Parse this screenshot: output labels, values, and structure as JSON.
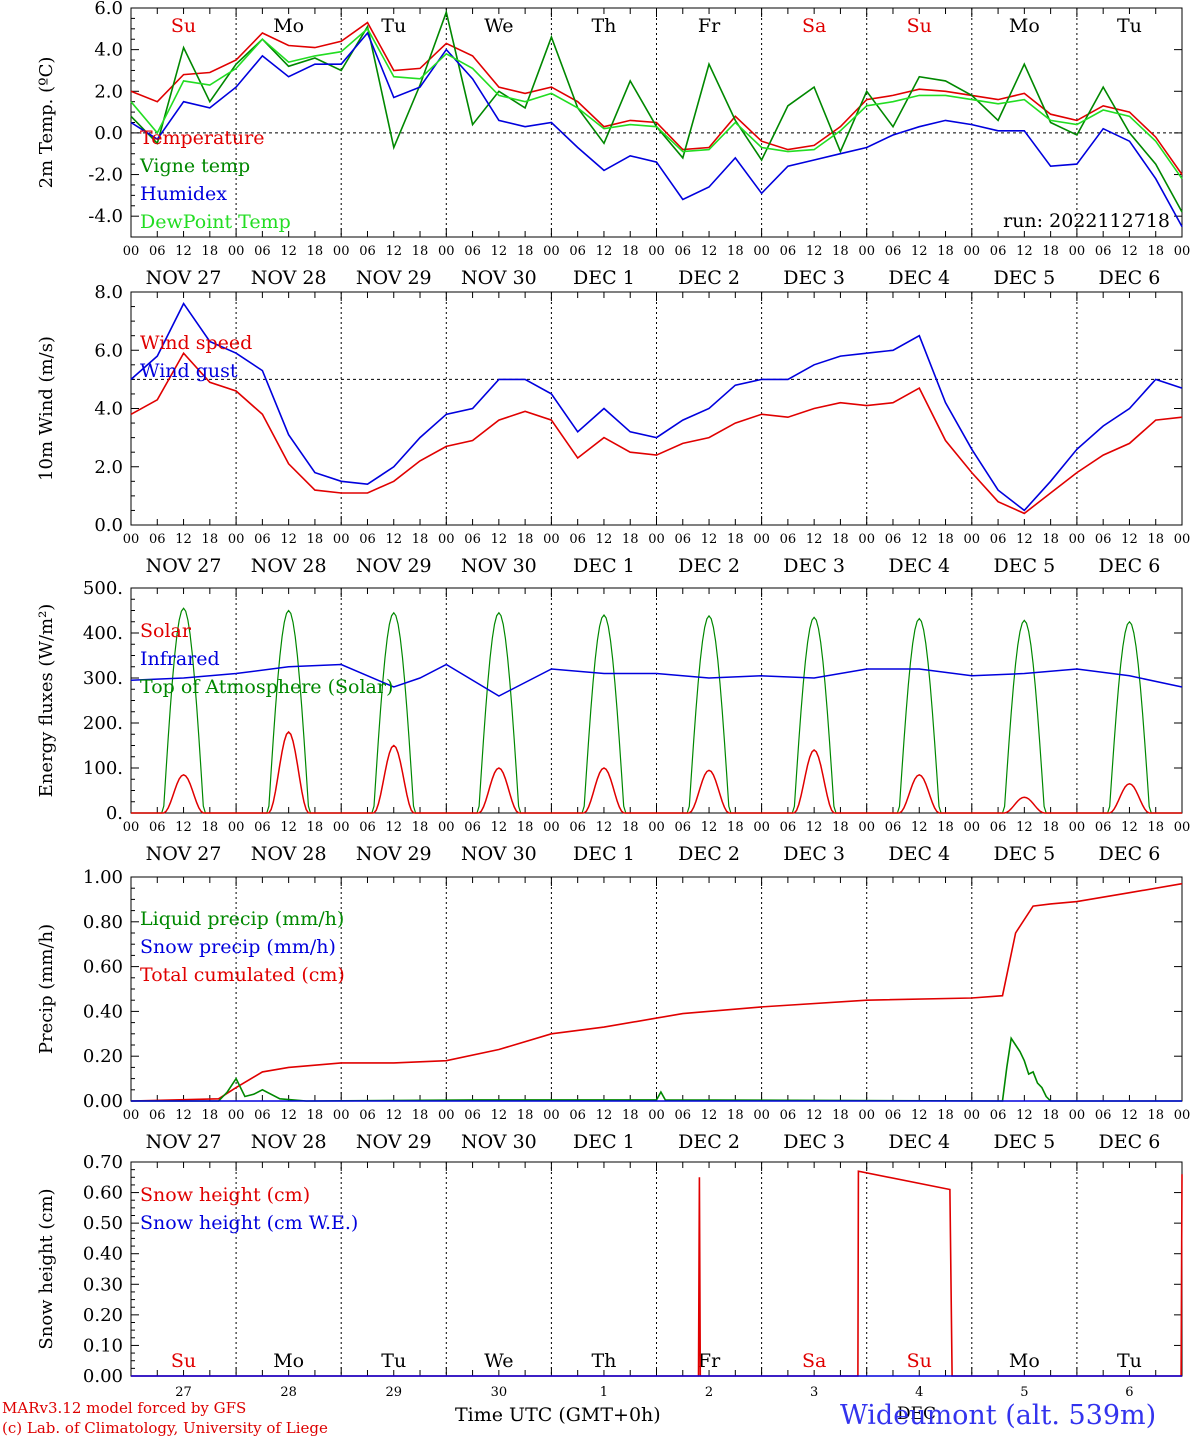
{
  "footer": {
    "model_line": "MARv3.12 model forced by GFS",
    "lab_line": "(c) Lab. of Climatology, University of Liege",
    "time_label": "Time UTC (GMT+0h)",
    "station": "Wideumont (alt. 539m)",
    "month_label": "DEC"
  },
  "colors": {
    "red": "#e00000",
    "green": "#008800",
    "blue": "#0000dd",
    "lightgreen": "#22dd22",
    "pink": "#dd0000"
  },
  "hour_ticks": [
    "00",
    "06",
    "12",
    "18"
  ],
  "date_labels": [
    "NOV 27",
    "NOV 28",
    "NOV 29",
    "NOV 30",
    "DEC  1",
    "DEC  2",
    "DEC  3",
    "DEC  4",
    "DEC  5",
    "DEC  6"
  ],
  "chart_data": [
    {
      "type": "line",
      "ylabel": "2m Temp. (ºC)",
      "ylim": [
        -5.0,
        6.0
      ],
      "yticks": [
        "6.0",
        "4.0",
        "2.0",
        "0.0",
        "-2.0",
        "-4.0"
      ],
      "ytick_values": [
        6,
        4,
        2,
        0,
        -2,
        -4
      ],
      "reference_line": 0,
      "weekdays": [
        "Su",
        "Mo",
        "Tu",
        "We",
        "Th",
        "Fr",
        "Sa",
        "Su",
        "Mo",
        "Tu"
      ],
      "weekday_colors": [
        "red",
        "black",
        "black",
        "black",
        "black",
        "black",
        "red",
        "red",
        "black",
        "black"
      ],
      "annotation": "run: 2022112718",
      "legend": [
        {
          "label": "Temperature",
          "color": "red"
        },
        {
          "label": "Vigne temp",
          "color": "green"
        },
        {
          "label": "Humidex",
          "color": "blue"
        },
        {
          "label": "DewPoint Temp",
          "color": "lightgreen"
        }
      ],
      "x_hours": [
        0,
        6,
        12,
        18,
        24,
        30,
        36,
        42,
        48,
        54,
        60,
        66,
        72,
        78,
        84,
        90,
        96,
        102,
        108,
        114,
        120,
        126,
        132,
        138,
        144,
        150,
        156,
        162,
        168,
        174,
        180,
        186,
        192,
        198,
        204,
        210,
        216,
        222,
        228,
        234,
        240
      ],
      "series": [
        {
          "name": "Temperature",
          "color": "red",
          "values": [
            2.0,
            1.5,
            2.8,
            2.9,
            3.5,
            4.8,
            4.2,
            4.1,
            4.4,
            5.3,
            3.0,
            3.1,
            4.3,
            3.7,
            2.2,
            1.9,
            2.2,
            1.5,
            0.3,
            0.6,
            0.5,
            -0.8,
            -0.7,
            0.8,
            -0.4,
            -0.8,
            -0.6,
            0.3,
            1.6,
            1.8,
            2.1,
            2.0,
            1.8,
            1.6,
            1.9,
            0.9,
            0.6,
            1.3,
            1.0,
            -0.2,
            -2.0
          ]
        },
        {
          "name": "Vigne temp",
          "color": "green",
          "values": [
            0.8,
            -0.5,
            4.1,
            1.5,
            3.3,
            4.5,
            3.2,
            3.6,
            3.0,
            5.1,
            -0.7,
            2.3,
            5.8,
            0.4,
            2.0,
            1.2,
            4.6,
            1.2,
            -0.5,
            2.5,
            0.3,
            -1.2,
            3.3,
            0.6,
            -1.3,
            1.3,
            2.2,
            -0.9,
            2.0,
            0.3,
            2.7,
            2.5,
            1.8,
            0.6,
            3.3,
            0.5,
            -0.1,
            2.2,
            0.0,
            -1.5,
            -3.8
          ]
        },
        {
          "name": "Humidex",
          "color": "blue",
          "values": [
            0.5,
            -0.3,
            1.5,
            1.2,
            2.2,
            3.7,
            2.7,
            3.3,
            3.3,
            4.8,
            1.7,
            2.2,
            4.0,
            2.6,
            0.6,
            0.3,
            0.5,
            -0.7,
            -1.8,
            -1.1,
            -1.4,
            -3.2,
            -2.6,
            -1.2,
            -2.9,
            -1.6,
            -1.3,
            -1.0,
            -0.7,
            -0.1,
            0.3,
            0.6,
            0.4,
            0.1,
            0.1,
            -1.6,
            -1.5,
            0.2,
            -0.4,
            -2.2,
            -4.5
          ]
        },
        {
          "name": "DewPoint Temp",
          "color": "lightgreen",
          "values": [
            1.5,
            0.0,
            2.5,
            2.3,
            3.1,
            4.5,
            3.4,
            3.7,
            3.9,
            5.0,
            2.7,
            2.6,
            3.8,
            3.1,
            1.8,
            1.5,
            1.9,
            1.2,
            0.2,
            0.4,
            0.3,
            -0.9,
            -0.8,
            0.5,
            -0.7,
            -0.9,
            -0.8,
            0.1,
            1.3,
            1.5,
            1.8,
            1.8,
            1.6,
            1.4,
            1.6,
            0.6,
            0.4,
            1.1,
            0.8,
            -0.4,
            -2.2
          ]
        }
      ]
    },
    {
      "type": "line",
      "ylabel": "10m Wind (m/s)",
      "ylim": [
        0.0,
        8.0
      ],
      "yticks": [
        "8.0",
        "6.0",
        "4.0",
        "2.0",
        "0.0"
      ],
      "ytick_values": [
        8,
        6,
        4,
        2,
        0
      ],
      "reference_line": 5,
      "legend": [
        {
          "label": "Wind speed",
          "color": "red"
        },
        {
          "label": "Wind gust",
          "color": "blue"
        }
      ],
      "x_hours": [
        0,
        6,
        12,
        18,
        24,
        30,
        36,
        42,
        48,
        54,
        60,
        66,
        72,
        78,
        84,
        90,
        96,
        102,
        108,
        114,
        120,
        126,
        132,
        138,
        144,
        150,
        156,
        162,
        168,
        174,
        180,
        186,
        192,
        198,
        204,
        210,
        216,
        222,
        228,
        234,
        240
      ],
      "series": [
        {
          "name": "Wind speed",
          "color": "red",
          "values": [
            3.8,
            4.3,
            5.9,
            4.9,
            4.6,
            3.8,
            2.1,
            1.2,
            1.1,
            1.1,
            1.5,
            2.2,
            2.7,
            2.9,
            3.6,
            3.9,
            3.6,
            2.3,
            3.0,
            2.5,
            2.4,
            2.8,
            3.0,
            3.5,
            3.8,
            3.7,
            4.0,
            4.2,
            4.1,
            4.2,
            4.7,
            2.9,
            1.8,
            0.8,
            0.4,
            1.1,
            1.8,
            2.4,
            2.8,
            3.6,
            3.7
          ]
        },
        {
          "name": "Wind gust",
          "color": "blue",
          "values": [
            5.0,
            5.8,
            7.6,
            6.3,
            5.9,
            5.3,
            3.1,
            1.8,
            1.5,
            1.4,
            2.0,
            3.0,
            3.8,
            4.0,
            5.0,
            5.0,
            4.5,
            3.2,
            4.0,
            3.2,
            3.0,
            3.6,
            4.0,
            4.8,
            5.0,
            5.0,
            5.5,
            5.8,
            5.9,
            6.0,
            6.5,
            4.2,
            2.6,
            1.2,
            0.5,
            1.5,
            2.6,
            3.4,
            4.0,
            5.0,
            4.7
          ]
        }
      ]
    },
    {
      "type": "area",
      "ylabel": "Energy fluxes (W/m²)",
      "ylim": [
        0,
        500
      ],
      "yticks": [
        "500.",
        "400.",
        "300.",
        "200.",
        "100.",
        "0."
      ],
      "ytick_values": [
        500,
        400,
        300,
        200,
        100,
        0
      ],
      "legend": [
        {
          "label": "Solar",
          "color": "red"
        },
        {
          "label": "Infrared",
          "color": "blue"
        },
        {
          "label": "Top of Atmosphere (Solar)",
          "color": "green"
        }
      ],
      "toa_peaks": [
        455,
        450,
        445,
        445,
        440,
        438,
        435,
        432,
        428,
        425
      ],
      "solar_peaks": [
        85,
        180,
        150,
        100,
        100,
        95,
        140,
        85,
        35,
        65
      ],
      "infrared": {
        "x_hours": [
          0,
          12,
          24,
          36,
          48,
          60,
          66,
          72,
          84,
          96,
          108,
          120,
          132,
          144,
          156,
          168,
          180,
          192,
          204,
          216,
          228,
          240
        ],
        "values": [
          295,
          300,
          310,
          325,
          330,
          280,
          300,
          330,
          260,
          320,
          310,
          310,
          300,
          305,
          300,
          320,
          320,
          305,
          310,
          320,
          305,
          280
        ]
      }
    },
    {
      "type": "line",
      "ylabel": "Precip (mm/h)",
      "ylim": [
        0.0,
        1.0
      ],
      "yticks": [
        "1.00",
        "0.80",
        "0.60",
        "0.40",
        "0.20",
        "0.00"
      ],
      "ytick_values": [
        1.0,
        0.8,
        0.6,
        0.4,
        0.2,
        0.0
      ],
      "legend": [
        {
          "label": "Liquid precip (mm/h)",
          "color": "green"
        },
        {
          "label": "Snow precip (mm/h)",
          "color": "blue"
        },
        {
          "label": "Total cumulated (cm)",
          "color": "red"
        }
      ],
      "series": [
        {
          "name": "Total cumulated (cm)",
          "color": "red",
          "x_hours": [
            0,
            20,
            24,
            30,
            36,
            48,
            60,
            72,
            84,
            96,
            108,
            120,
            126,
            144,
            168,
            192,
            199,
            202,
            206,
            210,
            216,
            228,
            240
          ],
          "values": [
            0.0,
            0.01,
            0.06,
            0.13,
            0.15,
            0.17,
            0.17,
            0.18,
            0.23,
            0.3,
            0.33,
            0.37,
            0.39,
            0.42,
            0.45,
            0.46,
            0.47,
            0.75,
            0.87,
            0.88,
            0.89,
            0.93,
            0.97
          ]
        },
        {
          "name": "Liquid precip (mm/h)",
          "color": "green",
          "x_hours": [
            0,
            20,
            22,
            24,
            26,
            28,
            30,
            34,
            40,
            80,
            96,
            120,
            121,
            122,
            199,
            200,
            201,
            202,
            203,
            204,
            205,
            206,
            207,
            208,
            209,
            210,
            240
          ],
          "values": [
            0,
            0,
            0.04,
            0.1,
            0.02,
            0.03,
            0.05,
            0.01,
            0,
            0.005,
            0.005,
            0.005,
            0.04,
            0.005,
            0,
            0.15,
            0.28,
            0.25,
            0.22,
            0.18,
            0.12,
            0.13,
            0.08,
            0.06,
            0.02,
            0,
            0
          ]
        },
        {
          "name": "Snow precip (mm/h)",
          "color": "blue",
          "x_hours": [
            0,
            240
          ],
          "values": [
            0,
            0
          ]
        }
      ]
    },
    {
      "type": "line",
      "ylabel": "Snow height (cm)",
      "ylim": [
        0.0,
        0.7
      ],
      "yticks": [
        "0.70",
        "0.60",
        "0.50",
        "0.40",
        "0.30",
        "0.20",
        "0.10",
        "0.00"
      ],
      "ytick_values": [
        0.7,
        0.6,
        0.5,
        0.4,
        0.3,
        0.2,
        0.1,
        0.0
      ],
      "weekdays": [
        "Su",
        "Mo",
        "Tu",
        "We",
        "Th",
        "Fr",
        "Sa",
        "Su",
        "Mo",
        "Tu"
      ],
      "weekday_colors": [
        "red",
        "black",
        "black",
        "black",
        "black",
        "black",
        "red",
        "red",
        "black",
        "black"
      ],
      "day_numbers": [
        "27",
        "28",
        "29",
        "30",
        "1",
        "2",
        "3",
        "4",
        "5",
        "6"
      ],
      "legend": [
        {
          "label": "Snow height (cm)",
          "color": "red"
        },
        {
          "label": "Snow height (cm W.E.)",
          "color": "blue"
        }
      ],
      "series": [
        {
          "name": "Snow height (cm)",
          "color": "red",
          "x_hours": [
            0,
            129.6,
            129.8,
            130,
            166,
            166.1,
            187,
            187.5,
            239.8,
            240
          ],
          "values": [
            0,
            0,
            0.65,
            0,
            0,
            0.67,
            0.61,
            0,
            0,
            0.66
          ]
        },
        {
          "name": "Snow height (cm W.E.)",
          "color": "blue",
          "x_hours": [
            0,
            240
          ],
          "values": [
            0,
            0
          ]
        }
      ]
    }
  ]
}
